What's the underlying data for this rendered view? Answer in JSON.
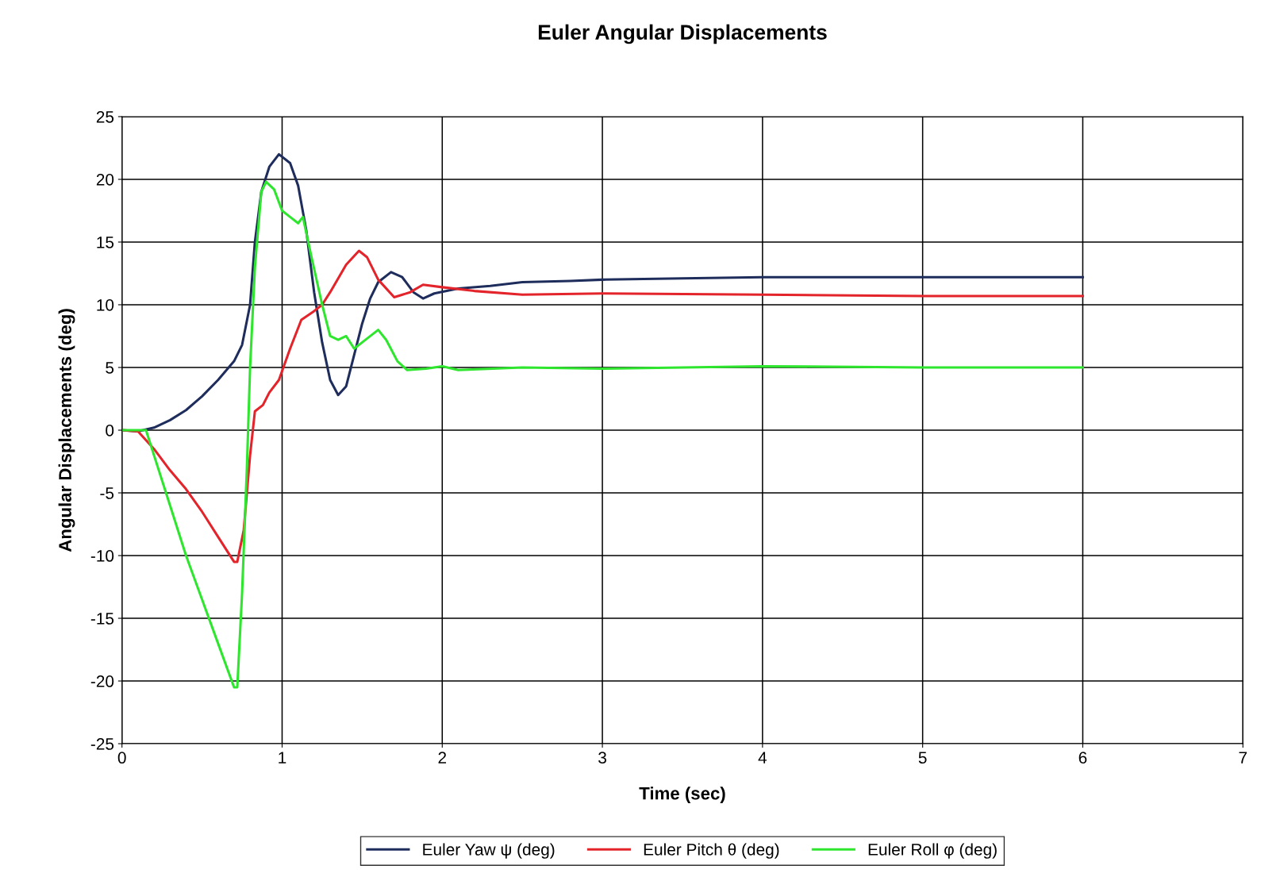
{
  "chart_data": {
    "type": "line",
    "title": "Euler Angular Displacements",
    "xlabel": "Time (sec)",
    "ylabel": "Angular Displacements (deg)",
    "xlim": [
      0,
      7
    ],
    "xticks": [
      0,
      1,
      2,
      3,
      4,
      5,
      6,
      7
    ],
    "ylim": [
      -25,
      25
    ],
    "yticks": [
      -25,
      -20,
      -15,
      -10,
      -5,
      0,
      5,
      10,
      15,
      20,
      25
    ],
    "grid": true,
    "legend": "bottom",
    "marker": "none",
    "line_style": "solid",
    "series": [
      {
        "name": "Euler Yaw ψ (deg)",
        "color": "#1f2d5c",
        "x": [
          0,
          0.1,
          0.2,
          0.3,
          0.4,
          0.5,
          0.6,
          0.7,
          0.75,
          0.8,
          0.83,
          0.87,
          0.92,
          0.98,
          1.05,
          1.1,
          1.15,
          1.2,
          1.25,
          1.3,
          1.35,
          1.4,
          1.45,
          1.5,
          1.55,
          1.6,
          1.68,
          1.75,
          1.82,
          1.88,
          1.95,
          2.1,
          2.3,
          2.5,
          2.8,
          3,
          3.5,
          4,
          5,
          6
        ],
        "values": [
          0,
          -0.1,
          0.2,
          0.8,
          1.6,
          2.7,
          4.0,
          5.5,
          6.8,
          10,
          15,
          19,
          21,
          22,
          21.3,
          19.5,
          16,
          11,
          7,
          4,
          2.8,
          3.5,
          6,
          8.5,
          10.5,
          11.8,
          12.6,
          12.2,
          11,
          10.5,
          10.9,
          11.3,
          11.5,
          11.8,
          11.9,
          12,
          12.1,
          12.2,
          12.2,
          12.2
        ]
      },
      {
        "name": "Euler Pitch θ (deg)",
        "color": "#e3242b",
        "x": [
          0,
          0.1,
          0.2,
          0.3,
          0.4,
          0.5,
          0.6,
          0.7,
          0.72,
          0.76,
          0.8,
          0.83,
          0.88,
          0.92,
          0.98,
          1.05,
          1.12,
          1.2,
          1.25,
          1.3,
          1.4,
          1.48,
          1.53,
          1.6,
          1.7,
          1.8,
          1.88,
          2,
          2.2,
          2.5,
          3,
          4,
          5,
          6
        ],
        "values": [
          0,
          -0.1,
          -1.5,
          -3.2,
          -4.7,
          -6.5,
          -8.5,
          -10.5,
          -10.5,
          -8,
          -2,
          1.5,
          2,
          3,
          4,
          6.5,
          8.8,
          9.5,
          10,
          11,
          13.2,
          14.3,
          13.8,
          12,
          10.6,
          11,
          11.6,
          11.4,
          11.1,
          10.8,
          10.9,
          10.8,
          10.7,
          10.7
        ]
      },
      {
        "name": "Euler Roll φ (deg)",
        "color": "#2ee62e",
        "x": [
          0,
          0.1,
          0.15,
          0.2,
          0.3,
          0.4,
          0.5,
          0.6,
          0.7,
          0.72,
          0.75,
          0.78,
          0.8,
          0.83,
          0.87,
          0.9,
          0.95,
          1.0,
          1.05,
          1.1,
          1.13,
          1.18,
          1.25,
          1.3,
          1.35,
          1.4,
          1.45,
          1.5,
          1.6,
          1.65,
          1.72,
          1.78,
          1.9,
          2,
          2.1,
          2.5,
          3,
          4,
          5,
          6
        ],
        "values": [
          0,
          0,
          0,
          -2,
          -6,
          -10,
          -13.5,
          -17,
          -20.5,
          -20.5,
          -13,
          -3,
          5,
          13,
          19,
          19.8,
          19.2,
          17.5,
          17,
          16.5,
          17,
          14,
          10,
          7.5,
          7.2,
          7.5,
          6.5,
          7,
          8,
          7.2,
          5.5,
          4.8,
          4.9,
          5.1,
          4.8,
          5,
          4.9,
          5.1,
          5,
          5
        ]
      }
    ]
  }
}
